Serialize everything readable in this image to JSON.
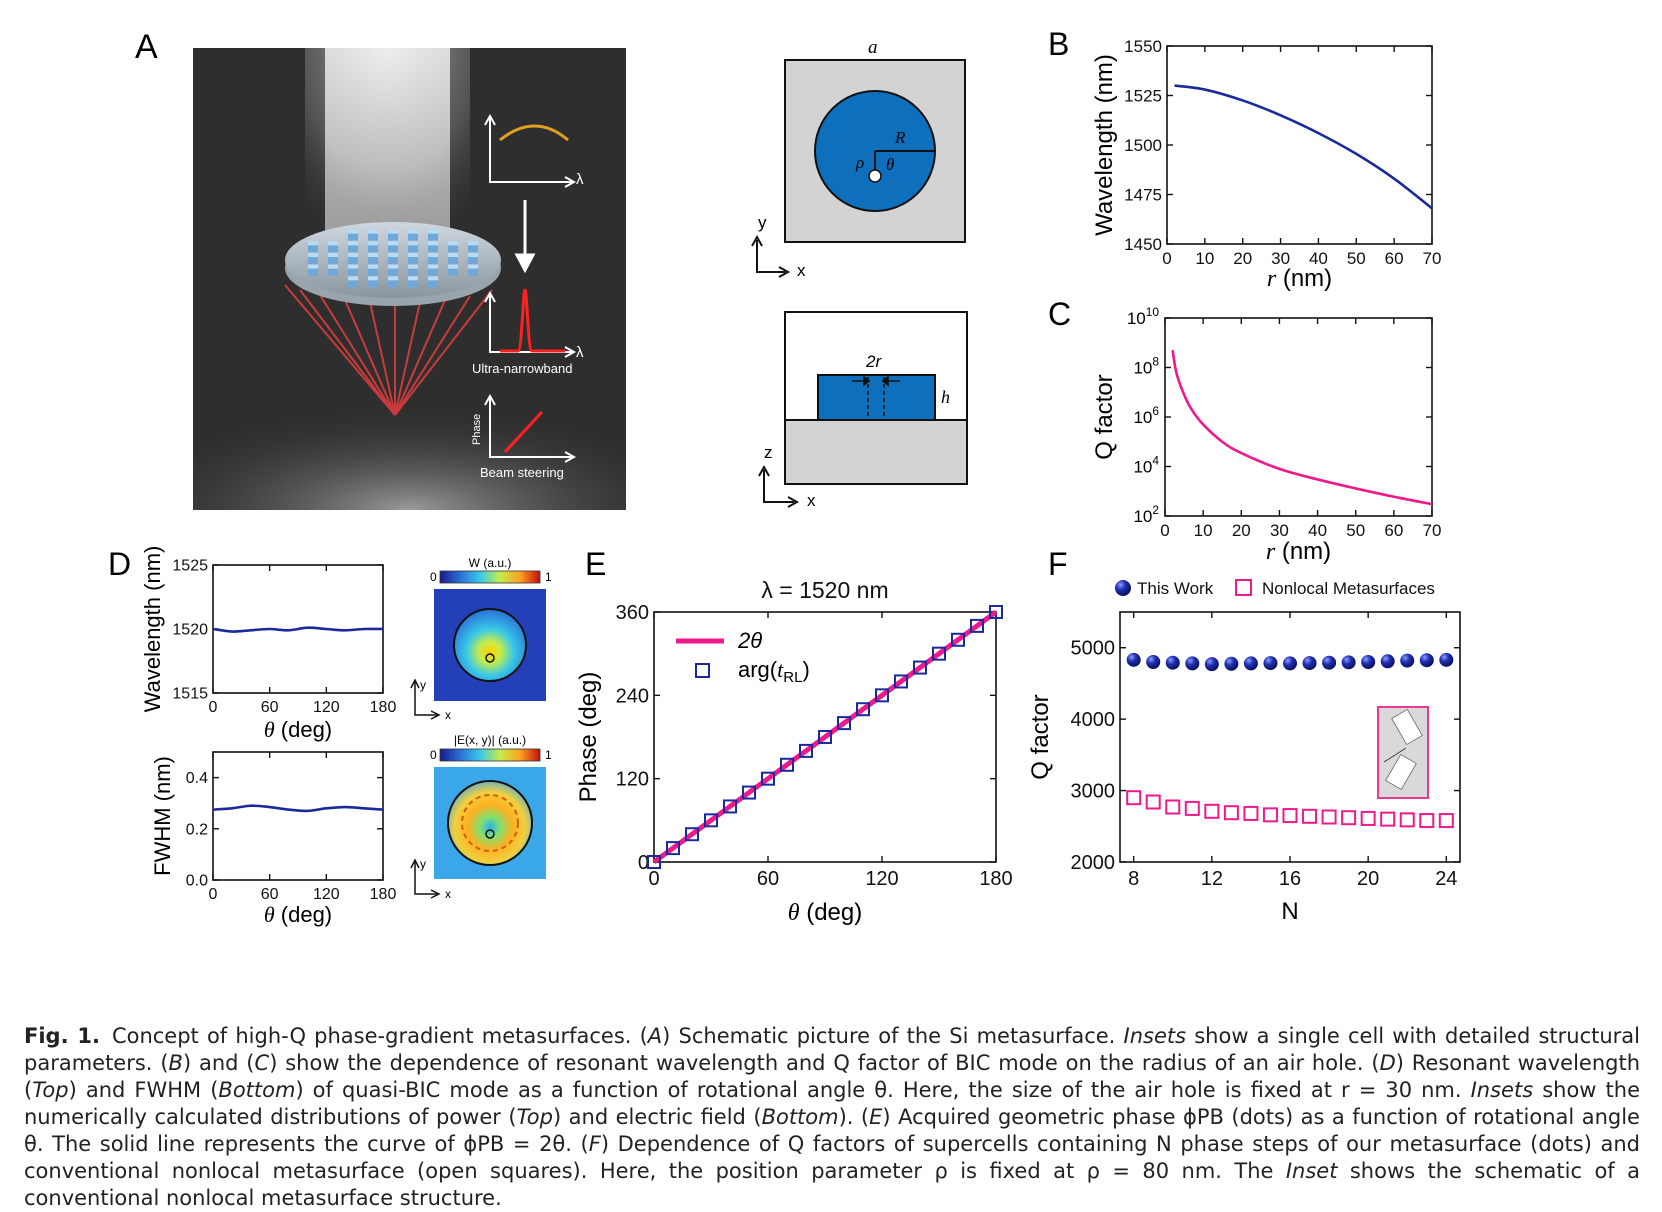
{
  "panels": {
    "a": "A",
    "b": "B",
    "c": "C",
    "d": "D",
    "e": "E",
    "f": "F"
  },
  "schematic": {
    "ultra_narrowband": "Ultra-narrowband",
    "beam_steering": "Beam steering",
    "phase": "Phase",
    "lambda": "λ"
  },
  "unit_cell_top": {
    "a": "a",
    "R": "R",
    "rho": "ρ",
    "theta": "θ",
    "y": "y",
    "x": "x"
  },
  "unit_cell_side": {
    "two_r": "2r",
    "h": "h",
    "z": "z",
    "x": "x"
  },
  "inset_d": {
    "power_title": "W (a.u.)",
    "field_title": "|E(x, y)| (a.u.)",
    "cbar_min": "0",
    "cbar_max": "1",
    "axis_y": "y",
    "axis_x": "x"
  },
  "chart_data": [
    {
      "id": "B",
      "type": "line",
      "xlabel": "r (nm)",
      "ylabel": "Wavelength (nm)",
      "xlim": [
        0,
        70
      ],
      "ylim": [
        1450,
        1550
      ],
      "xticks": [
        0,
        10,
        20,
        30,
        40,
        50,
        60,
        70
      ],
      "yticks": [
        1450,
        1475,
        1500,
        1525,
        1550
      ],
      "series": [
        {
          "color": "#1a2a9c",
          "x": [
            2,
            10,
            20,
            30,
            40,
            50,
            60,
            70
          ],
          "y": [
            1530,
            1528,
            1522.5,
            1515,
            1506,
            1495.5,
            1483,
            1468
          ]
        }
      ]
    },
    {
      "id": "C",
      "type": "line",
      "xlabel": "r (nm)",
      "ylabel": "Q factor",
      "xlim": [
        0,
        70
      ],
      "ylim": [
        100,
        10000000000
      ],
      "yscale": "log",
      "xticks": [
        0,
        10,
        20,
        30,
        40,
        50,
        60,
        70
      ],
      "yticks": [
        "10^2",
        "10^4",
        "10^6",
        "10^8",
        "10^10"
      ],
      "series": [
        {
          "color": "#ee1a8c",
          "x": [
            2,
            3,
            5,
            7,
            10,
            15,
            20,
            30,
            40,
            50,
            60,
            70
          ],
          "y": [
            500000000,
            60000000,
            8000000,
            2000000,
            500000,
            100000,
            35000,
            8000,
            3000,
            1300,
            600,
            300
          ]
        }
      ]
    },
    {
      "id": "D-top",
      "type": "line",
      "xlabel": "θ (deg)",
      "ylabel": "Wavelength (nm)",
      "xlim": [
        0,
        180
      ],
      "ylim": [
        1515,
        1525
      ],
      "xticks": [
        0,
        60,
        120,
        180
      ],
      "yticks": [
        1515,
        1520,
        1525
      ],
      "series": [
        {
          "color": "#1a2a9c",
          "x": [
            0,
            20,
            40,
            60,
            80,
            100,
            120,
            140,
            160,
            180
          ],
          "y": [
            1520,
            1519.8,
            1519.9,
            1520,
            1519.9,
            1520.1,
            1520,
            1519.9,
            1520,
            1520
          ]
        }
      ]
    },
    {
      "id": "D-bottom",
      "type": "line",
      "xlabel": "θ (deg)",
      "ylabel": "FWHM (nm)",
      "xlim": [
        0,
        180
      ],
      "ylim": [
        0,
        0.5
      ],
      "xticks": [
        0,
        60,
        120,
        180
      ],
      "yticks": [
        0.0,
        0.2,
        0.4
      ],
      "series": [
        {
          "color": "#1a2a9c",
          "x": [
            0,
            20,
            40,
            60,
            80,
            100,
            120,
            140,
            160,
            180
          ],
          "y": [
            0.275,
            0.28,
            0.29,
            0.285,
            0.275,
            0.27,
            0.28,
            0.285,
            0.28,
            0.275
          ]
        }
      ]
    },
    {
      "id": "E",
      "type": "line",
      "title": "λ = 1520 nm",
      "xlabel": "θ (deg)",
      "ylabel": "Phase (deg)",
      "xlim": [
        0,
        180
      ],
      "ylim": [
        0,
        360
      ],
      "xticks": [
        0,
        60,
        120,
        180
      ],
      "yticks": [
        0,
        120,
        240,
        360
      ],
      "legend": "top-left",
      "series": [
        {
          "name": "2θ",
          "color": "#ee1a8c",
          "style": "line",
          "x": [
            0,
            180
          ],
          "y": [
            0,
            360
          ]
        },
        {
          "name": "arg(tRL)",
          "color": "#1a2a9c",
          "style": "open-square",
          "x": [
            0,
            10,
            20,
            30,
            40,
            50,
            60,
            70,
            80,
            90,
            100,
            110,
            120,
            130,
            140,
            150,
            160,
            170,
            180
          ],
          "y": [
            0,
            20,
            40,
            60,
            80,
            100,
            120,
            140,
            160,
            180,
            200,
            220,
            240,
            260,
            280,
            300,
            320,
            340,
            360
          ]
        }
      ]
    },
    {
      "id": "F",
      "type": "scatter",
      "xlabel": "N",
      "ylabel": "Q factor",
      "xlim": [
        7.3,
        24.7
      ],
      "ylim": [
        2000,
        5500
      ],
      "xticks": [
        8,
        12,
        16,
        20,
        24
      ],
      "yticks": [
        2000,
        3000,
        4000,
        5000
      ],
      "legend": "top",
      "series": [
        {
          "name": "This Work",
          "color": "#1a2a9c",
          "style": "ball",
          "x": [
            8,
            9,
            10,
            11,
            12,
            13,
            14,
            15,
            16,
            17,
            18,
            19,
            20,
            21,
            22,
            23,
            24
          ],
          "y": [
            4830,
            4800,
            4790,
            4780,
            4770,
            4775,
            4780,
            4785,
            4780,
            4785,
            4790,
            4795,
            4800,
            4810,
            4820,
            4825,
            4830
          ]
        },
        {
          "name": "Nonlocal Metasurfaces",
          "color": "#ee1a8c",
          "style": "open-square",
          "x": [
            8,
            9,
            10,
            11,
            12,
            13,
            14,
            15,
            16,
            17,
            18,
            19,
            20,
            21,
            22,
            23,
            24
          ],
          "y": [
            2900,
            2840,
            2770,
            2750,
            2710,
            2690,
            2680,
            2660,
            2650,
            2640,
            2630,
            2620,
            2610,
            2600,
            2590,
            2580,
            2580
          ]
        }
      ]
    }
  ],
  "caption": {
    "label": "Fig. 1.",
    "p1": "Concept of high-Q phase-gradient metasurfaces. (",
    "p2": "A",
    "p3": ") Schematic picture of the Si metasurface. ",
    "p4": "Insets",
    "p5": " show a single cell with detailed structural parameters. (",
    "p6": "B",
    "p7": ") and (",
    "p8": "C",
    "p9": ") show the dependence of resonant wavelength and Q factor of BIC mode on the radius of an air hole. (",
    "p10": "D",
    "p11": ") Resonant wavelength (",
    "p12": "Top",
    "p13": ") and FWHM (",
    "p14": "Bottom",
    "p15": ") of quasi-BIC mode as a function of rotational angle θ. Here, the size of the air hole is fixed at r = 30 nm. ",
    "p16": "Insets",
    "p17": " show the numerically calculated distributions of power (",
    "p18": "Top",
    "p19": ") and electric field (",
    "p20": "Bottom",
    "p21": "). (",
    "p22": "E",
    "p23": ") Acquired geometric phase ϕPB (dots) as a function of rotational angle θ. The solid line represents the curve of ϕPB = 2θ. (",
    "p24": "F",
    "p25": ") Dependence of Q factors of supercells containing N phase steps of our metasurface (dots) and conventional nonlocal metasurface (open squares). Here, the position parameter ρ is fixed at ρ = 80 nm. The ",
    "p26": "Inset",
    "p27": " shows the schematic of a conventional nonlocal metasurface structure."
  }
}
